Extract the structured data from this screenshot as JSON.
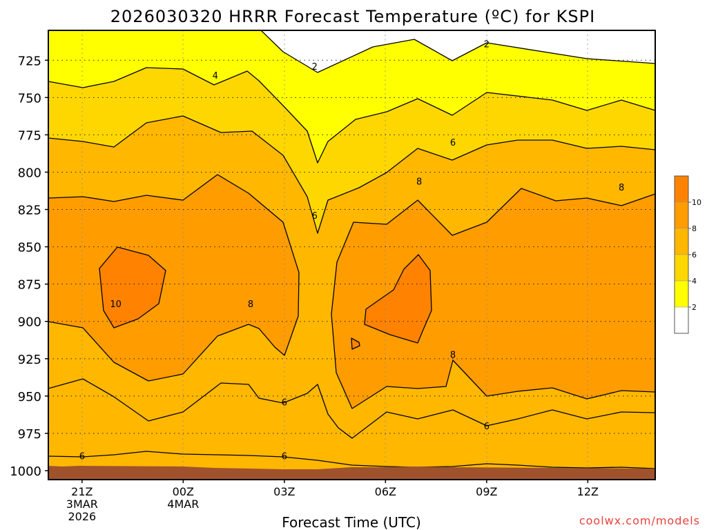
{
  "title": "2026030320 HRRR Forecast Temperature (ºC) for KSPI",
  "credit": "coolwx.com/models",
  "chart_data": {
    "type": "contour",
    "title": "2026030320 HRRR Forecast Temperature (ºC) for KSPI",
    "xlabel": "Forecast Time (UTC)",
    "ylabel": "",
    "x_ticks": [
      {
        "hour": 0,
        "lines": [
          "21Z",
          "3MAR",
          "2026"
        ]
      },
      {
        "hour": 3,
        "lines": [
          "00Z",
          "4MAR"
        ]
      },
      {
        "hour": 6,
        "lines": [
          "03Z"
        ]
      },
      {
        "hour": 9,
        "lines": [
          "06Z"
        ]
      },
      {
        "hour": 12,
        "lines": [
          "09Z"
        ]
      },
      {
        "hour": 15,
        "lines": [
          "12Z"
        ]
      }
    ],
    "x_range": [
      -1,
      17
    ],
    "y_ticks": [
      "725",
      "750",
      "775",
      "800",
      "825",
      "850",
      "875",
      "900",
      "925",
      "950",
      "975",
      "1000"
    ],
    "y_range_hpa": [
      705,
      1006
    ],
    "surface_pressure_hpa": 999,
    "color_levels": [
      2,
      4,
      6,
      8,
      10
    ],
    "colorbar_labels": [
      "2",
      "4",
      "6",
      "8",
      "10"
    ],
    "colors": {
      "below_2": "#ffffff",
      "2_4": "#ffff00",
      "4_6": "#ffd700",
      "6_8": "#ffb700",
      "8_10": "#ff9c00",
      "above_10": "#ff8300",
      "ground": "#a0522d"
    },
    "contour_labels": [
      {
        "text": "2",
        "hour": 12,
        "hpa": 714
      },
      {
        "text": "2",
        "hour": 6.9,
        "hpa": 729
      },
      {
        "text": "4",
        "hour": 3.95,
        "hpa": 735
      },
      {
        "text": "6",
        "hour": 6.9,
        "hpa": 829
      },
      {
        "text": "6",
        "hour": 11.0,
        "hpa": 780
      },
      {
        "text": "8",
        "hour": 10.0,
        "hpa": 806
      },
      {
        "text": "8",
        "hour": 16.0,
        "hpa": 810
      },
      {
        "text": "8",
        "hour": 5.0,
        "hpa": 888
      },
      {
        "text": "8",
        "hour": 11.0,
        "hpa": 922
      },
      {
        "text": "10",
        "hour": 1.0,
        "hpa": 888
      },
      {
        "text": "6",
        "hour": 6.0,
        "hpa": 954
      },
      {
        "text": "6",
        "hour": 12.0,
        "hpa": 970
      },
      {
        "text": "6",
        "hour": 0,
        "hpa": 990
      },
      {
        "text": "6",
        "hour": 6.0,
        "hpa": 990
      }
    ]
  }
}
